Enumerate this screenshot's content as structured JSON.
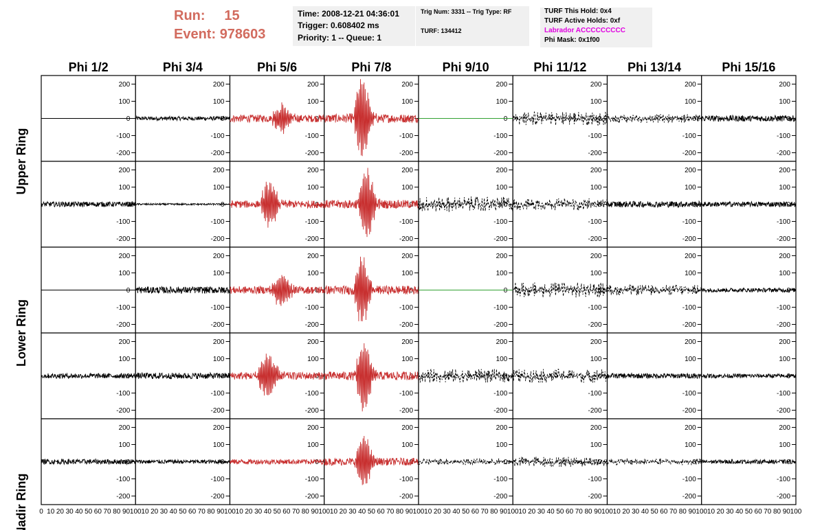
{
  "header": {
    "run_label": "Run:",
    "run_value": "15",
    "event_label": "Event:",
    "event_value": "978603",
    "time": "Time: 2008-12-21 04:36:01",
    "trigger": "Trigger: 0.608402 ms",
    "priority": "Priority: 1 -- Queue: 1",
    "trig_num": "Trig Num: 3331 -- Trig Type: RF",
    "turf": "TURF: 134412",
    "turf_this_hold": "TURF This Hold: 0x4",
    "turf_active_holds": "TURF Active Holds: 0xf",
    "labrador": "Labrador ACCCCCCCCC",
    "phi_mask": "Phi Mask: 0x1f00",
    "labrador_color": "#e000e0",
    "run_color": "#d26b5e"
  },
  "chart_data": {
    "type": "line",
    "columns": [
      "Phi 1/2",
      "Phi 3/4",
      "Phi 5/6",
      "Phi 7/8",
      "Phi 9/10",
      "Phi 11/12",
      "Phi 13/14",
      "Phi 15/16"
    ],
    "rows": [
      "Upper Ring",
      "",
      "Lower Ring",
      "",
      "Nadir Ring"
    ],
    "ylim": [
      -250,
      250
    ],
    "y_ticks": [
      -200,
      -100,
      0,
      100,
      200
    ],
    "xlim": [
      0,
      100
    ],
    "x_ticks": [
      0,
      10,
      20,
      30,
      40,
      50,
      60,
      70,
      80,
      90,
      100
    ],
    "series_colors": {
      "normal": "#000000",
      "triggered": "#c83030",
      "masked": "#30a030"
    },
    "panels": [
      [
        {
          "style": "flat",
          "color": "black",
          "amp": 0
        },
        {
          "style": "noise",
          "color": "black",
          "amp": 12
        },
        {
          "style": "pulse",
          "color": "red",
          "amp": 22,
          "peak": 75,
          "center": 55,
          "width": 10
        },
        {
          "style": "pulse",
          "color": "red",
          "amp": 25,
          "peak": 240,
          "center": 40,
          "width": 8
        },
        {
          "style": "flat",
          "color": "green",
          "amp": 0
        },
        {
          "style": "dashed",
          "color": "black",
          "amp": 40
        },
        {
          "style": "dashed",
          "color": "black",
          "amp": 25
        },
        {
          "style": "noise",
          "color": "black",
          "amp": 18
        }
      ],
      [
        {
          "style": "noise",
          "color": "black",
          "amp": 15
        },
        {
          "style": "noise",
          "color": "black",
          "amp": 5
        },
        {
          "style": "pulse",
          "color": "red",
          "amp": 22,
          "peak": 130,
          "center": 42,
          "width": 9
        },
        {
          "style": "pulse",
          "color": "red",
          "amp": 25,
          "peak": 200,
          "center": 45,
          "width": 8
        },
        {
          "style": "dashed",
          "color": "black",
          "amp": 45
        },
        {
          "style": "dashed",
          "color": "black",
          "amp": 35
        },
        {
          "style": "noise",
          "color": "black",
          "amp": 18
        },
        {
          "style": "noise",
          "color": "black",
          "amp": 15
        }
      ],
      [
        {
          "style": "flat",
          "color": "black",
          "amp": 0
        },
        {
          "style": "noise",
          "color": "black",
          "amp": 20
        },
        {
          "style": "pulse",
          "color": "red",
          "amp": 22,
          "peak": 95,
          "center": 55,
          "width": 10
        },
        {
          "style": "pulse",
          "color": "red",
          "amp": 25,
          "peak": 200,
          "center": 40,
          "width": 8
        },
        {
          "style": "flat",
          "color": "green",
          "amp": 0
        },
        {
          "style": "dashed",
          "color": "black",
          "amp": 45
        },
        {
          "style": "dashed",
          "color": "black",
          "amp": 30
        },
        {
          "style": "noise",
          "color": "black",
          "amp": 12
        }
      ],
      [
        {
          "style": "noise",
          "color": "black",
          "amp": 15
        },
        {
          "style": "noise",
          "color": "black",
          "amp": 18
        },
        {
          "style": "pulse",
          "color": "red",
          "amp": 22,
          "peak": 120,
          "center": 40,
          "width": 10
        },
        {
          "style": "pulse",
          "color": "red",
          "amp": 25,
          "peak": 200,
          "center": 42,
          "width": 8
        },
        {
          "style": "dashed",
          "color": "black",
          "amp": 40
        },
        {
          "style": "dashed",
          "color": "black",
          "amp": 40
        },
        {
          "style": "noise",
          "color": "black",
          "amp": 15
        },
        {
          "style": "noise",
          "color": "black",
          "amp": 12
        }
      ],
      [
        {
          "style": "noise",
          "color": "black",
          "amp": 15
        },
        {
          "style": "noise",
          "color": "black",
          "amp": 12
        },
        {
          "style": "noise",
          "color": "red",
          "amp": 15
        },
        {
          "style": "pulse",
          "color": "red",
          "amp": 22,
          "peak": 150,
          "center": 42,
          "width": 8
        },
        {
          "style": "dashed",
          "color": "black",
          "amp": 20
        },
        {
          "style": "dashed",
          "color": "black",
          "amp": 30
        },
        {
          "style": "dashed",
          "color": "black",
          "amp": 20
        },
        {
          "style": "noise",
          "color": "black",
          "amp": 12
        }
      ]
    ]
  }
}
